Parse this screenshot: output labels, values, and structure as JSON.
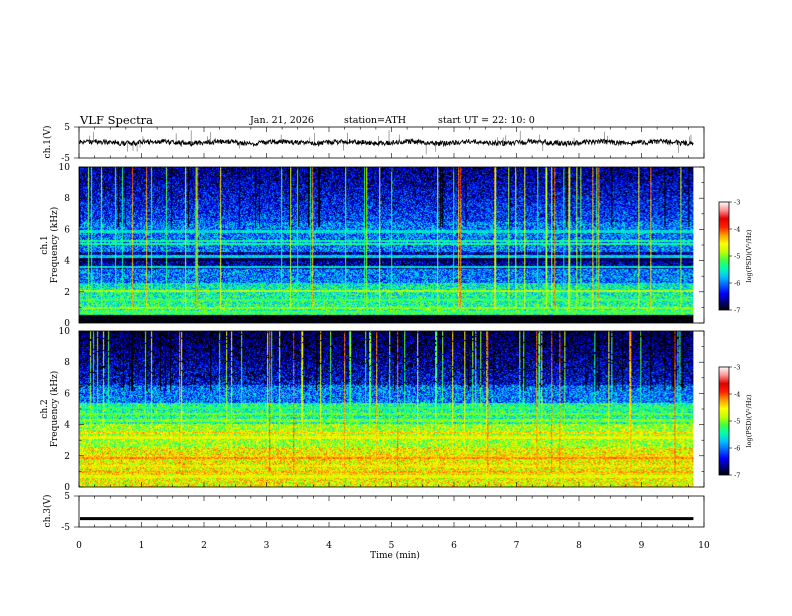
{
  "header": {
    "title": "VLF  Spectra",
    "date": "Jan. 21, 2026",
    "station": "station=ATH",
    "start": "start  UT  =    22: 10: 0"
  },
  "chart_data": {
    "type": "heatmap",
    "x_axis": {
      "label": "Time  (min)",
      "range": [
        0,
        10
      ],
      "ticks": [
        0,
        1,
        2,
        3,
        4,
        5,
        6,
        7,
        8,
        9,
        10
      ],
      "data_end": 9.83
    },
    "panels": [
      {
        "id": "ch1-timeseries",
        "kind": "line",
        "ylabel": "ch.1(V)",
        "ylim": [
          -5,
          5
        ],
        "yticks": [
          5,
          -5
        ],
        "baseline": 0,
        "color": "#000000"
      },
      {
        "id": "ch1-spectrogram",
        "kind": "spectrogram",
        "ylabel": "ch.1\nFrequency  (kHz)",
        "ylabel_lines": [
          "ch.1",
          "Frequency  (kHz)"
        ],
        "ylim": [
          0,
          10
        ],
        "yticks": [
          0,
          2,
          4,
          6,
          8,
          10
        ],
        "bands_khz": [
          {
            "f": 0.2,
            "level": -7.2
          },
          {
            "f": 0.4,
            "level": -7.2
          },
          {
            "f": 0.7,
            "level": -5.2
          },
          {
            "f": 1.0,
            "level": -5.0
          },
          {
            "f": 1.5,
            "level": -5.2
          },
          {
            "f": 2.1,
            "level": -4.9
          },
          {
            "f": 3.6,
            "level": -5.6
          },
          {
            "f": 4.1,
            "level": -6.8
          },
          {
            "f": 4.3,
            "level": -5.7
          },
          {
            "f": 5.1,
            "level": -5.4
          },
          {
            "f": 5.3,
            "level": -5.4
          },
          {
            "f": 5.9,
            "level": -5.6
          }
        ]
      },
      {
        "id": "ch2-spectrogram",
        "kind": "spectrogram",
        "ylabel": "ch.2\nFrequency  (kHz)",
        "ylabel_lines": [
          "ch.2",
          "Frequency  (kHz)"
        ],
        "ylim": [
          0,
          10
        ],
        "yticks": [
          0,
          2,
          4,
          6,
          8,
          10
        ],
        "bands_khz": [
          {
            "f": 0.7,
            "level": -4.6
          },
          {
            "f": 1.0,
            "level": -4.3
          },
          {
            "f": 1.4,
            "level": -4.5
          },
          {
            "f": 1.9,
            "level": -4.2
          },
          {
            "f": 2.0,
            "level": -4.4
          },
          {
            "f": 3.2,
            "level": -4.6
          },
          {
            "f": 3.5,
            "level": -4.4
          },
          {
            "f": 4.3,
            "level": -5.0
          },
          {
            "f": 4.7,
            "level": -5.1
          },
          {
            "f": 5.1,
            "level": -5.3
          }
        ]
      },
      {
        "id": "ch3-timeseries",
        "kind": "line",
        "ylabel": "ch.3(V)",
        "ylim": [
          -5,
          5
        ],
        "yticks": [
          5,
          -5
        ],
        "baseline": -2.3,
        "color": "#000000"
      }
    ],
    "colorbar": {
      "label": "log(PSD)(V²/Hz)",
      "range": [
        -7,
        -3
      ],
      "ticks": [
        -3,
        -4,
        -5,
        -6,
        -7
      ],
      "tick_labels": [
        "-3",
        "-4",
        "-5",
        "-6",
        "-7"
      ],
      "colormap": [
        "#000000",
        "#000080",
        "#0000ff",
        "#0060ff",
        "#00c0ff",
        "#00ffb0",
        "#40ff40",
        "#c0ff00",
        "#ffff00",
        "#ffa000",
        "#ff2000",
        "#e00000",
        "#ff9090",
        "#ffffff"
      ]
    }
  }
}
